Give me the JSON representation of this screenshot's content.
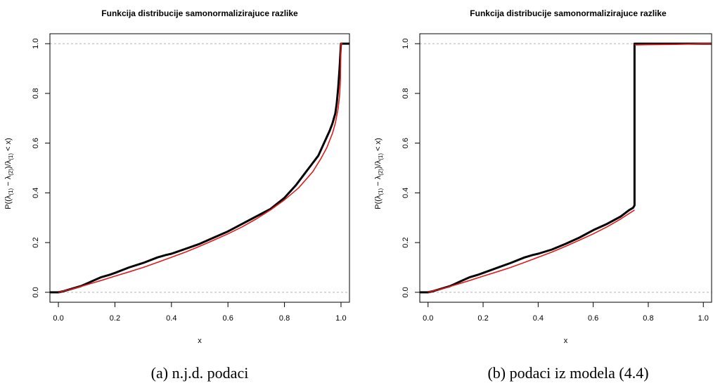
{
  "chart_data": [
    {
      "type": "line",
      "title": "Funkcija distribucije samonormalizirajuce razlike",
      "xlabel": "x",
      "ylabel_parts": [
        "P((λ",
        "(1)",
        " − λ",
        "(2)",
        ")/λ",
        "(1)",
        " < x)"
      ],
      "caption": "(a) n.j.d. podaci",
      "xlim": [
        -0.03,
        1.03
      ],
      "ylim": [
        -0.04,
        1.04
      ],
      "xticks": [
        "0.0",
        "0.2",
        "0.4",
        "0.6",
        "0.8",
        "1.0"
      ],
      "yticks": [
        "0.0",
        "0.2",
        "0.4",
        "0.6",
        "0.8",
        "1.0"
      ],
      "reference_lines": [
        0,
        1
      ],
      "colors": {
        "empirical": "#000000",
        "theoretical": "#e41a1c",
        "reference": "#b3b3b3"
      },
      "series": [
        {
          "role": "empirical",
          "x": [
            -0.03,
            0.0,
            0.02,
            0.05,
            0.08,
            0.1,
            0.12,
            0.15,
            0.18,
            0.2,
            0.25,
            0.3,
            0.35,
            0.38,
            0.4,
            0.45,
            0.5,
            0.55,
            0.6,
            0.65,
            0.7,
            0.75,
            0.8,
            0.84,
            0.88,
            0.9,
            0.92,
            0.94,
            0.96,
            0.97,
            0.98,
            0.985,
            0.99,
            0.995,
            0.998,
            1.0,
            1.03
          ],
          "y": [
            0.0,
            0.0,
            0.005,
            0.015,
            0.025,
            0.035,
            0.045,
            0.06,
            0.07,
            0.078,
            0.1,
            0.118,
            0.14,
            0.15,
            0.155,
            0.175,
            0.195,
            0.22,
            0.245,
            0.275,
            0.305,
            0.335,
            0.38,
            0.43,
            0.49,
            0.52,
            0.55,
            0.6,
            0.65,
            0.68,
            0.72,
            0.76,
            0.82,
            0.9,
            0.96,
            1.0,
            1.0
          ]
        },
        {
          "role": "theoretical",
          "x": [
            0.0,
            0.05,
            0.1,
            0.15,
            0.2,
            0.25,
            0.3,
            0.35,
            0.4,
            0.45,
            0.5,
            0.55,
            0.6,
            0.65,
            0.7,
            0.75,
            0.8,
            0.85,
            0.9,
            0.93,
            0.95,
            0.97,
            0.98,
            0.99,
            0.995,
            0.998,
            1.0,
            1.005
          ],
          "y": [
            0.0,
            0.014,
            0.03,
            0.047,
            0.065,
            0.082,
            0.1,
            0.12,
            0.141,
            0.162,
            0.185,
            0.21,
            0.235,
            0.263,
            0.295,
            0.331,
            0.372,
            0.42,
            0.485,
            0.54,
            0.582,
            0.64,
            0.68,
            0.74,
            0.79,
            0.85,
            1.0,
            1.0
          ]
        }
      ]
    },
    {
      "type": "line",
      "title": "Funkcija distribucije samonormalizirajuce razlike",
      "xlabel": "x",
      "ylabel_parts": [
        "P((λ",
        "(1)",
        " − λ",
        "(2)",
        ")/λ",
        "(1)",
        " < x)"
      ],
      "caption": "(b) podaci iz modela (4.4)",
      "xlim": [
        -0.03,
        1.03
      ],
      "ylim": [
        -0.04,
        1.04
      ],
      "xticks": [
        "0.0",
        "0.2",
        "0.4",
        "0.6",
        "0.8",
        "1.0"
      ],
      "yticks": [
        "0.0",
        "0.2",
        "0.4",
        "0.6",
        "0.8",
        "1.0"
      ],
      "reference_lines": [
        0,
        1
      ],
      "colors": {
        "empirical": "#000000",
        "theoretical": "#e41a1c",
        "reference": "#b3b3b3"
      },
      "series": [
        {
          "role": "empirical",
          "x": [
            -0.03,
            0.0,
            0.02,
            0.05,
            0.08,
            0.1,
            0.12,
            0.15,
            0.18,
            0.2,
            0.25,
            0.3,
            0.35,
            0.38,
            0.4,
            0.45,
            0.5,
            0.55,
            0.6,
            0.65,
            0.7,
            0.73,
            0.745,
            0.75,
            0.75,
            0.8,
            0.9,
            1.0,
            1.03
          ],
          "y": [
            0.0,
            0.0,
            0.005,
            0.015,
            0.025,
            0.035,
            0.045,
            0.06,
            0.07,
            0.078,
            0.098,
            0.118,
            0.14,
            0.15,
            0.155,
            0.172,
            0.195,
            0.22,
            0.25,
            0.275,
            0.305,
            0.33,
            0.34,
            0.35,
            1.0,
            1.0,
            1.0,
            1.0,
            1.0
          ]
        },
        {
          "role": "theoretical",
          "x": [
            0.0,
            0.05,
            0.1,
            0.15,
            0.2,
            0.25,
            0.3,
            0.35,
            0.4,
            0.45,
            0.5,
            0.55,
            0.6,
            0.65,
            0.7,
            0.75
          ],
          "y": [
            0.0,
            0.014,
            0.03,
            0.047,
            0.065,
            0.082,
            0.1,
            0.12,
            0.141,
            0.162,
            0.185,
            0.21,
            0.235,
            0.263,
            0.295,
            0.331
          ]
        },
        {
          "role": "theoretical",
          "x": [
            0.75,
            0.8,
            0.9,
            1.0,
            1.03
          ],
          "y": [
            0.995,
            0.996,
            0.997,
            1.0,
            1.0
          ]
        }
      ]
    }
  ]
}
